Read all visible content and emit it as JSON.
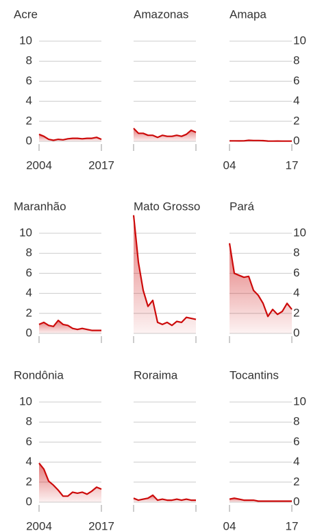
{
  "chart_data": [
    {
      "type": "area",
      "title": "Acre",
      "x": [
        2004,
        2005,
        2006,
        2007,
        2008,
        2009,
        2010,
        2011,
        2012,
        2013,
        2014,
        2015,
        2016,
        2017
      ],
      "values": [
        0.7,
        0.5,
        0.2,
        0.1,
        0.2,
        0.15,
        0.25,
        0.3,
        0.3,
        0.25,
        0.3,
        0.3,
        0.4,
        0.2
      ],
      "color": "#cc0a0a",
      "xlim": [
        2004,
        2017
      ],
      "xticks": [
        2004,
        2017
      ],
      "xtick_labels": true,
      "ylim": [
        0,
        10
      ],
      "yticks": [
        0,
        2,
        4,
        6,
        8,
        10
      ],
      "ytick_labels": "left",
      "grid": true
    },
    {
      "type": "area",
      "title": "Amazonas",
      "x": [
        2004,
        2005,
        2006,
        2007,
        2008,
        2009,
        2010,
        2011,
        2012,
        2013,
        2014,
        2015,
        2016,
        2017
      ],
      "values": [
        1.3,
        0.8,
        0.8,
        0.6,
        0.6,
        0.4,
        0.6,
        0.5,
        0.5,
        0.6,
        0.5,
        0.7,
        1.1,
        0.9
      ],
      "color": "#cc0a0a",
      "xlim": [
        2004,
        2017
      ],
      "xticks": [
        2004,
        2017
      ],
      "xtick_labels": false,
      "ylim": [
        0,
        10
      ],
      "yticks": [
        0,
        2,
        4,
        6,
        8,
        10
      ],
      "ytick_labels": "none",
      "grid": true
    },
    {
      "type": "area",
      "title": "Amapa",
      "x": [
        2004,
        2005,
        2006,
        2007,
        2008,
        2009,
        2010,
        2011,
        2012,
        2013,
        2014,
        2015,
        2016,
        2017
      ],
      "values": [
        0.05,
        0.05,
        0.04,
        0.05,
        0.1,
        0.08,
        0.08,
        0.07,
        0.03,
        0.02,
        0.03,
        0.02,
        0.02,
        0.02
      ],
      "color": "#cc0a0a",
      "xlim": [
        2004,
        2017
      ],
      "xticks": [
        {
          "value": 2004,
          "label": "04"
        },
        {
          "value": 2017,
          "label": "17"
        }
      ],
      "xtick_labels": true,
      "ylim": [
        0,
        10
      ],
      "yticks": [
        0,
        2,
        4,
        6,
        8,
        10
      ],
      "ytick_labels": "right",
      "grid": true
    },
    {
      "type": "area",
      "title": "Maranhão",
      "x": [
        2004,
        2005,
        2006,
        2007,
        2008,
        2009,
        2010,
        2011,
        2012,
        2013,
        2014,
        2015,
        2016,
        2017
      ],
      "values": [
        0.9,
        1.1,
        0.8,
        0.7,
        1.3,
        0.9,
        0.8,
        0.5,
        0.4,
        0.5,
        0.4,
        0.3,
        0.3,
        0.3
      ],
      "color": "#cc0a0a",
      "xlim": [
        2004,
        2017
      ],
      "xticks": [
        2004,
        2017
      ],
      "xtick_labels": false,
      "ylim": [
        0,
        10
      ],
      "yticks": [
        0,
        2,
        4,
        6,
        8,
        10
      ],
      "ytick_labels": "left",
      "grid": true
    },
    {
      "type": "area",
      "title": "Mato Grosso",
      "x": [
        2004,
        2005,
        2006,
        2007,
        2008,
        2009,
        2010,
        2011,
        2012,
        2013,
        2014,
        2015,
        2016,
        2017
      ],
      "values": [
        11.8,
        7.1,
        4.3,
        2.7,
        3.3,
        1.1,
        0.9,
        1.1,
        0.8,
        1.2,
        1.1,
        1.6,
        1.5,
        1.4
      ],
      "color": "#cc0a0a",
      "xlim": [
        2004,
        2017
      ],
      "xticks": [
        2004,
        2017
      ],
      "xtick_labels": false,
      "ylim": [
        0,
        10
      ],
      "yticks": [
        0,
        2,
        4,
        6,
        8,
        10
      ],
      "ytick_labels": "none",
      "grid": true
    },
    {
      "type": "area",
      "title": "Pará",
      "x": [
        2004,
        2005,
        2006,
        2007,
        2008,
        2009,
        2010,
        2011,
        2012,
        2013,
        2014,
        2015,
        2016,
        2017
      ],
      "values": [
        9,
        6,
        5.8,
        5.6,
        5.7,
        4.3,
        3.8,
        3.0,
        1.7,
        2.4,
        1.9,
        2.2,
        3.0,
        2.4
      ],
      "color": "#cc0a0a",
      "xlim": [
        2004,
        2017
      ],
      "xticks": [
        2004,
        2017
      ],
      "xtick_labels": false,
      "ylim": [
        0,
        10
      ],
      "yticks": [
        0,
        2,
        4,
        6,
        8,
        10
      ],
      "ytick_labels": "right",
      "grid": true
    },
    {
      "type": "area",
      "title": "Rondônia",
      "x": [
        2004,
        2005,
        2006,
        2007,
        2008,
        2009,
        2010,
        2011,
        2012,
        2013,
        2014,
        2015,
        2016,
        2017
      ],
      "values": [
        3.9,
        3.3,
        2.1,
        1.7,
        1.2,
        0.6,
        0.6,
        1.0,
        0.9,
        1.0,
        0.8,
        1.1,
        1.5,
        1.3
      ],
      "color": "#cc0a0a",
      "xlim": [
        2004,
        2017
      ],
      "xticks": [
        2004,
        2017
      ],
      "xtick_labels": true,
      "ylim": [
        0,
        10
      ],
      "yticks": [
        0,
        2,
        4,
        6,
        8,
        10
      ],
      "ytick_labels": "left",
      "grid": true
    },
    {
      "type": "area",
      "title": "Roraima",
      "x": [
        2004,
        2005,
        2006,
        2007,
        2008,
        2009,
        2010,
        2011,
        2012,
        2013,
        2014,
        2015,
        2016,
        2017
      ],
      "values": [
        0.4,
        0.2,
        0.3,
        0.4,
        0.7,
        0.2,
        0.3,
        0.2,
        0.2,
        0.3,
        0.2,
        0.3,
        0.2,
        0.2
      ],
      "color": "#cc0a0a",
      "xlim": [
        2004,
        2017
      ],
      "xticks": [
        2004,
        2017
      ],
      "xtick_labels": false,
      "ylim": [
        0,
        10
      ],
      "yticks": [
        0,
        2,
        4,
        6,
        8,
        10
      ],
      "ytick_labels": "none",
      "grid": true
    },
    {
      "type": "area",
      "title": "Tocantins",
      "x": [
        2004,
        2005,
        2006,
        2007,
        2008,
        2009,
        2010,
        2011,
        2012,
        2013,
        2014,
        2015,
        2016,
        2017
      ],
      "values": [
        0.3,
        0.4,
        0.3,
        0.2,
        0.2,
        0.2,
        0.1,
        0.1,
        0.1,
        0.1,
        0.1,
        0.1,
        0.1,
        0.1
      ],
      "color": "#cc0a0a",
      "xlim": [
        2004,
        2017
      ],
      "xticks": [
        {
          "value": 2004,
          "label": "04"
        },
        {
          "value": 2017,
          "label": "17"
        }
      ],
      "xtick_labels": true,
      "ylim": [
        0,
        10
      ],
      "yticks": [
        0,
        2,
        4,
        6,
        8,
        10
      ],
      "ytick_labels": "right",
      "grid": true
    }
  ]
}
